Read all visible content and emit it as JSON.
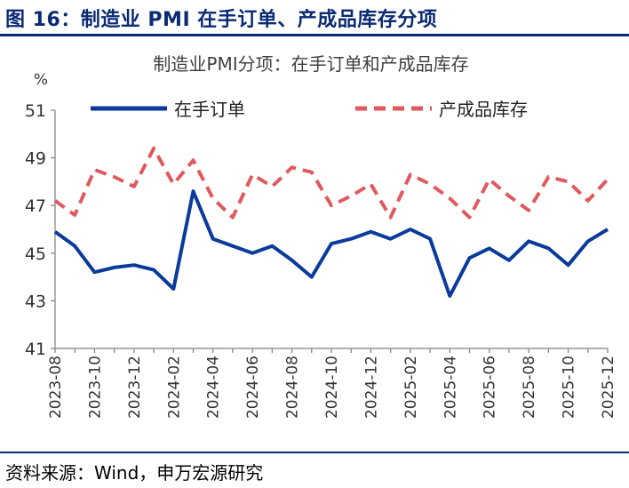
{
  "figure": {
    "title": "图 16：制造业 PMI 在手订单、产成品库存分项",
    "source": "资料来源：Wind，申万宏源研究"
  },
  "colors": {
    "brand": "#0a2a73",
    "series_orders": "#0a3a9c",
    "series_inventory": "#e0595e",
    "axis": "#808080",
    "text": "#404040"
  },
  "chart_data": {
    "type": "line",
    "title": "制造业PMI分项：在手订单和产成品库存",
    "ylabel": "%",
    "xlabel": "",
    "ylim": [
      41,
      51
    ],
    "yticks": [
      41,
      43,
      45,
      47,
      49,
      51
    ],
    "grid": false,
    "legend_position": "top",
    "x": [
      "2023-08",
      "2023-09",
      "2023-10",
      "2023-11",
      "2023-12",
      "2024-01",
      "2024-02",
      "2024-03",
      "2024-04",
      "2024-05",
      "2024-06",
      "2024-07",
      "2024-08",
      "2024-09",
      "2024-10",
      "2024-11",
      "2024-12",
      "2025-01",
      "2025-02",
      "2025-03",
      "2025-04",
      "2025-05",
      "2025-06",
      "2025-07",
      "2025-08",
      "2025-09",
      "2025-10",
      "2025-11",
      "2025-12"
    ],
    "xtick_labels": [
      "2023-08",
      "2023-10",
      "2023-12",
      "2024-02",
      "2024-04",
      "2024-06",
      "2024-08",
      "2024-10",
      "2024-12",
      "2025-02",
      "2025-04",
      "2025-06",
      "2025-08",
      "2025-10",
      "2025-12"
    ],
    "series": [
      {
        "name": "在手订单",
        "style": "solid",
        "values": [
          45.9,
          45.3,
          44.2,
          44.4,
          44.5,
          44.3,
          43.5,
          47.6,
          45.6,
          45.3,
          45.0,
          45.3,
          44.7,
          44.0,
          45.4,
          45.6,
          45.9,
          45.6,
          46.0,
          45.6,
          43.2,
          44.8,
          45.2,
          44.7,
          45.5,
          45.2,
          44.5,
          45.5,
          46.0
        ]
      },
      {
        "name": "产成品库存",
        "style": "dashed",
        "values": [
          47.2,
          46.6,
          48.5,
          48.2,
          47.8,
          49.4,
          47.9,
          48.9,
          47.3,
          46.5,
          48.3,
          47.8,
          48.6,
          48.4,
          47.0,
          47.4,
          47.9,
          46.5,
          48.3,
          47.9,
          47.3,
          46.5,
          48.1,
          47.4,
          46.8,
          48.2,
          48.0,
          47.2,
          48.1
        ]
      }
    ]
  }
}
